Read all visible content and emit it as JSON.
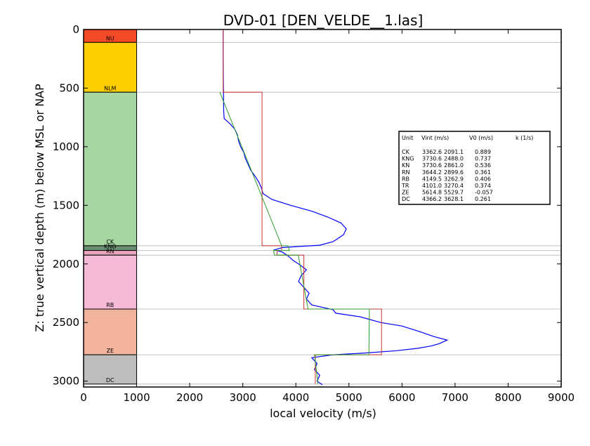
{
  "chart_data": {
    "type": "line",
    "title": "DVD-01 [DEN_VELDE__1.las]",
    "xlabel": "local velocity (m/s)",
    "ylabel": "Z: true vertical depth (m) below MSL or NAP",
    "xlim": [
      0,
      9000
    ],
    "ylim": [
      3050,
      0
    ],
    "y_inverted": true,
    "x_ticks": [
      "0",
      "1000",
      "2000",
      "3000",
      "4000",
      "5000",
      "6000",
      "7000",
      "8000",
      "9000"
    ],
    "y_ticks": [
      "0",
      "500",
      "1000",
      "1500",
      "2000",
      "2500",
      "3000"
    ],
    "grid": false,
    "colors": {
      "velocity_log": "#0000ff",
      "interval_velocity": "#cc3333",
      "v0_k_model": "#2a9d2a",
      "boundary_lines": "#c0c0c0"
    },
    "stratigraphy": [
      {
        "unit": "NU",
        "top": 0,
        "base": 110,
        "color": "#f44a27"
      },
      {
        "unit": "NLM",
        "top": 110,
        "base": 535,
        "color": "#fdcf00"
      },
      {
        "unit": "CK",
        "top": 535,
        "base": 1845,
        "color": "#a6d6a1"
      },
      {
        "unit": "KNG",
        "top": 1845,
        "base": 1885,
        "color": "#6b8f72"
      },
      {
        "unit": "RN",
        "top": 1885,
        "base": 1925,
        "color": "#e9a5ba"
      },
      {
        "unit": "RB",
        "top": 1925,
        "base": 2385,
        "color": "#f5bad5"
      },
      {
        "unit": "ZE",
        "top": 2385,
        "base": 2775,
        "color": "#f3b49e"
      },
      {
        "unit": "DC",
        "top": 2775,
        "base": 3025,
        "color": "#bdbdbd"
      }
    ],
    "boundaries": [
      110,
      535,
      1845,
      1885,
      1925,
      2385,
      2775,
      3025
    ],
    "series": [
      {
        "name": "velocity log",
        "points": [
          [
            2630,
            10
          ],
          [
            2630,
            300
          ],
          [
            2640,
            700
          ],
          [
            2650,
            760
          ],
          [
            2700,
            780
          ],
          [
            2750,
            800
          ],
          [
            2850,
            850
          ],
          [
            2900,
            900
          ],
          [
            2920,
            950
          ],
          [
            2960,
            1000
          ],
          [
            3020,
            1050
          ],
          [
            3050,
            1100
          ],
          [
            3100,
            1150
          ],
          [
            3150,
            1200
          ],
          [
            3230,
            1250
          ],
          [
            3300,
            1300
          ],
          [
            3350,
            1350
          ],
          [
            3380,
            1400
          ],
          [
            3550,
            1450
          ],
          [
            3900,
            1500
          ],
          [
            4300,
            1550
          ],
          [
            4600,
            1600
          ],
          [
            4850,
            1650
          ],
          [
            4950,
            1700
          ],
          [
            4900,
            1750
          ],
          [
            4800,
            1780
          ],
          [
            4700,
            1810
          ],
          [
            4450,
            1840
          ],
          [
            3750,
            1860
          ],
          [
            3600,
            1880
          ],
          [
            3750,
            1900
          ],
          [
            3850,
            1930
          ],
          [
            3950,
            1970
          ],
          [
            4050,
            2000
          ],
          [
            4200,
            2050
          ],
          [
            4100,
            2100
          ],
          [
            4050,
            2150
          ],
          [
            4150,
            2200
          ],
          [
            4250,
            2250
          ],
          [
            4200,
            2300
          ],
          [
            4300,
            2350
          ],
          [
            4600,
            2380
          ],
          [
            4700,
            2390
          ],
          [
            4750,
            2420
          ],
          [
            5200,
            2450
          ],
          [
            5600,
            2500
          ],
          [
            6000,
            2530
          ],
          [
            6350,
            2580
          ],
          [
            6600,
            2620
          ],
          [
            6850,
            2650
          ],
          [
            6700,
            2680
          ],
          [
            6550,
            2700
          ],
          [
            6300,
            2720
          ],
          [
            5900,
            2740
          ],
          [
            5300,
            2760
          ],
          [
            4700,
            2775
          ],
          [
            4300,
            2800
          ],
          [
            4400,
            2850
          ],
          [
            4350,
            2900
          ],
          [
            4450,
            2950
          ],
          [
            4400,
            3000
          ],
          [
            4500,
            3030
          ]
        ]
      },
      {
        "name": "interval velocity",
        "points": [
          [
            2630,
            0
          ],
          [
            2630,
            535
          ],
          [
            3363,
            535
          ],
          [
            3363,
            1845
          ],
          [
            3731,
            1845
          ],
          [
            3731,
            1885
          ],
          [
            3645,
            1885
          ],
          [
            3645,
            1925
          ],
          [
            4150,
            1925
          ],
          [
            4150,
            2385
          ],
          [
            5615,
            2385
          ],
          [
            5615,
            2775
          ],
          [
            4366,
            2775
          ],
          [
            4366,
            3025
          ]
        ]
      },
      {
        "name": "V0-k model",
        "points": [
          [
            2567,
            535
          ],
          [
            3732,
            1845
          ],
          [
            3850,
            1845
          ],
          [
            3880,
            1885
          ],
          [
            3580,
            1885
          ],
          [
            3595,
            1925
          ],
          [
            4045,
            1925
          ],
          [
            4230,
            2385
          ],
          [
            5385,
            2385
          ],
          [
            5376,
            2775
          ],
          [
            4352,
            2775
          ],
          [
            4417,
            3025
          ]
        ]
      }
    ],
    "legend_table": {
      "placement": "right",
      "header": [
        "Unit",
        "Vint (m/s)",
        "V0 (m/s)",
        "k (1/s)"
      ],
      "rows": [
        [
          "CK",
          "3362.6",
          "2091.1",
          "0.889"
        ],
        [
          "KNG",
          "3730.6",
          "2488.0",
          "0.737"
        ],
        [
          "KN",
          "3730.6",
          "2861.0",
          "0.536"
        ],
        [
          "RN",
          "3644.2",
          "2899.6",
          "0.361"
        ],
        [
          "RB",
          "4149.5",
          "3262.9",
          "0.406"
        ],
        [
          "TR",
          "4101.0",
          "3270.4",
          "0.374"
        ],
        [
          "ZE",
          "5614.8",
          "5529.7",
          "-0.057"
        ],
        [
          "DC",
          "4366.2",
          "3628.1",
          "0.261"
        ]
      ]
    }
  }
}
